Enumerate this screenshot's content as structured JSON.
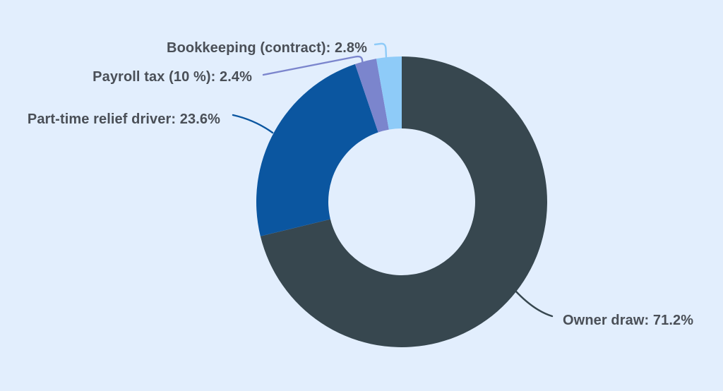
{
  "page": {
    "background_color": "#e2eefd"
  },
  "chart_data": {
    "type": "pie",
    "subtype": "doughnut",
    "title": "",
    "unit": "%",
    "start_angle_deg": 0,
    "direction": "clockwise",
    "cutout_ratio": 0.505,
    "label_color": "#4a4f57",
    "slices": [
      {
        "label": "Owner draw",
        "value": 71.2,
        "color": "#37474f",
        "label_text": "Owner draw: 71.2%"
      },
      {
        "label": "Part-time relief driver",
        "value": 23.6,
        "color": "#0b56a0",
        "label_text": "Part-time relief driver: 23.6%"
      },
      {
        "label": "Payroll tax (10 %)",
        "value": 2.4,
        "color": "#7b85cd",
        "label_text": "Payroll tax (10 %): 2.4%"
      },
      {
        "label": "Bookkeeping (contract)",
        "value": 2.8,
        "color": "#8ecbf8",
        "label_text": "Bookkeeping (contract): 2.8%"
      }
    ]
  }
}
